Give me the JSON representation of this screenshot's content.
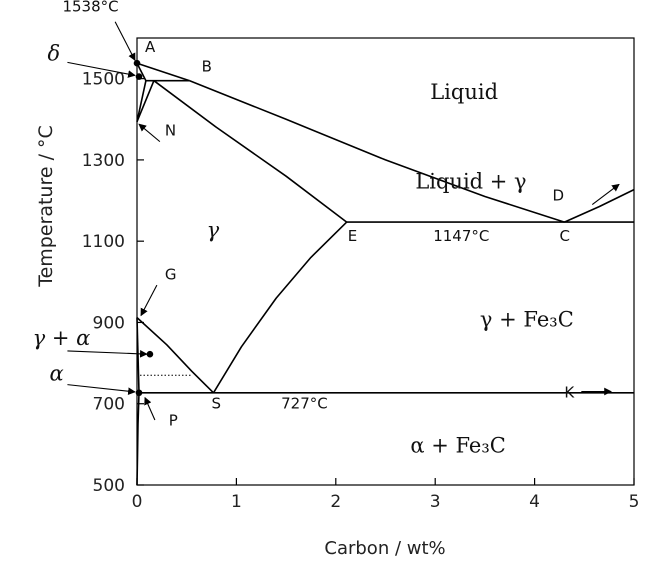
{
  "chart_data": {
    "type": "line",
    "title": "",
    "xlabel": "Carbon / wt%",
    "ylabel": "Temperature / °C",
    "xlim": [
      0,
      5
    ],
    "ylim": [
      500,
      1600
    ],
    "x_ticks": [
      "0",
      "1",
      "2",
      "3",
      "4",
      "5"
    ],
    "y_ticks": [
      "500",
      "700",
      "900",
      "1100",
      "1300",
      "1500"
    ],
    "x_tick_values": [
      0,
      1,
      2,
      3,
      4,
      5
    ],
    "y_tick_values": [
      500,
      700,
      900,
      1100,
      1300,
      1500
    ],
    "grid": false,
    "series": [
      {
        "id": "liquidus-AB",
        "points": [
          [
            0,
            1538
          ],
          [
            0.53,
            1495
          ]
        ]
      },
      {
        "id": "liquidus-BC",
        "points": [
          [
            0.53,
            1495
          ],
          [
            1.5,
            1400
          ],
          [
            2.5,
            1300
          ],
          [
            3.5,
            1210
          ],
          [
            4.3,
            1147
          ]
        ]
      },
      {
        "id": "solidus-E",
        "points": [
          [
            0.17,
            1495
          ],
          [
            0.8,
            1380
          ],
          [
            1.5,
            1260
          ],
          [
            2.11,
            1147
          ]
        ]
      },
      {
        "id": "line-CD",
        "points": [
          [
            4.3,
            1147
          ],
          [
            4.65,
            1185
          ],
          [
            5.0,
            1227
          ]
        ]
      },
      {
        "id": "eutectic-EC",
        "points": [
          [
            2.11,
            1147
          ],
          [
            5.0,
            1147
          ]
        ]
      },
      {
        "id": "peritectic",
        "points": [
          [
            0.09,
            1495
          ],
          [
            0.53,
            1495
          ]
        ]
      },
      {
        "id": "delta-solidus",
        "points": [
          [
            0,
            1538
          ],
          [
            0.09,
            1495
          ]
        ]
      },
      {
        "id": "delta-gamma-left",
        "points": [
          [
            0,
            1394
          ],
          [
            0.09,
            1495
          ]
        ]
      },
      {
        "id": "delta-gamma-right",
        "points": [
          [
            0,
            1394
          ],
          [
            0.17,
            1495
          ]
        ]
      },
      {
        "id": "acm-SE",
        "points": [
          [
            0.77,
            727
          ],
          [
            1.05,
            840
          ],
          [
            1.4,
            960
          ],
          [
            1.75,
            1060
          ],
          [
            2.11,
            1147
          ]
        ]
      },
      {
        "id": "a3-GS",
        "points": [
          [
            0,
            912
          ],
          [
            0.3,
            845
          ],
          [
            0.55,
            780
          ],
          [
            0.77,
            727
          ]
        ]
      },
      {
        "id": "a1-PK",
        "points": [
          [
            0.02,
            727
          ],
          [
            5.0,
            727
          ]
        ]
      },
      {
        "id": "alpha-boundary-GP",
        "points": [
          [
            0,
            912
          ],
          [
            0.02,
            727
          ]
        ]
      },
      {
        "id": "alpha-solvus",
        "points": [
          [
            0.02,
            727
          ],
          [
            0.01,
            650
          ],
          [
            0.005,
            570
          ],
          [
            0,
            500
          ]
        ]
      }
    ],
    "dotted_line": {
      "points": [
        [
          0.03,
          770
        ],
        [
          0.55,
          770
        ]
      ]
    },
    "marked_points": [
      {
        "name": "point-A",
        "x": 0.0,
        "y": 1538
      },
      {
        "name": "point-delta",
        "x": 0.02,
        "y": 1505
      },
      {
        "name": "point-alpha",
        "x": 0.02,
        "y": 727
      },
      {
        "name": "point-gamma-alpha",
        "x": 0.13,
        "y": 822
      }
    ],
    "point_labels": [
      {
        "name": "label-A",
        "text": "A",
        "x": 0.08,
        "y": 1565
      },
      {
        "name": "label-B",
        "text": "B",
        "x": 0.65,
        "y": 1518
      },
      {
        "name": "label-N",
        "text": "N",
        "x": 0.28,
        "y": 1360
      },
      {
        "name": "label-E",
        "text": "E",
        "x": 2.12,
        "y": 1100
      },
      {
        "name": "label-C",
        "text": "C",
        "x": 4.25,
        "y": 1100
      },
      {
        "name": "label-D",
        "text": "D",
        "x": 4.18,
        "y": 1200
      },
      {
        "name": "label-G",
        "text": "G",
        "x": 0.28,
        "y": 1006
      },
      {
        "name": "label-S",
        "text": "S",
        "x": 0.75,
        "y": 688
      },
      {
        "name": "label-P",
        "text": "P",
        "x": 0.32,
        "y": 646
      },
      {
        "name": "label-K",
        "text": "K",
        "x": 4.3,
        "y": 715
      }
    ],
    "temperature_labels": [
      {
        "name": "label-1147",
        "text": "1147°C",
        "x": 2.98,
        "y": 1100
      },
      {
        "name": "label-727",
        "text": "727°C",
        "x": 1.45,
        "y": 688
      },
      {
        "name": "label-1538",
        "text": "1538°C",
        "x": -0.75,
        "y": 1665
      }
    ],
    "phase_labels": [
      {
        "name": "phase-liquid",
        "text": "Liquid",
        "x": 2.95,
        "y": 1450
      },
      {
        "name": "phase-liquid-gamma",
        "text": "Liquid + γ",
        "x": 2.8,
        "y": 1230
      },
      {
        "name": "phase-gamma",
        "text": "γ",
        "x": 0.7,
        "y": 1110
      },
      {
        "name": "phase-gamma-fe3c",
        "text": "γ + Fe₃C",
        "x": 3.45,
        "y": 890
      },
      {
        "name": "phase-alpha-fe3c",
        "text": "α + Fe₃C",
        "x": 2.75,
        "y": 580
      }
    ],
    "side_labels": [
      {
        "name": "label-delta",
        "text": "δ",
        "x": -0.9,
        "y": 1545
      },
      {
        "name": "label-gamma-alpha",
        "text": "γ + α",
        "x": -1.05,
        "y": 845
      },
      {
        "name": "label-alpha",
        "text": "α",
        "x": -0.88,
        "y": 757
      }
    ],
    "arrows": [
      {
        "name": "arrow-1538",
        "from": [
          -0.22,
          1640
        ],
        "to": [
          -0.02,
          1545
        ]
      },
      {
        "name": "arrow-delta",
        "from": [
          -0.7,
          1540
        ],
        "to": [
          -0.02,
          1508
        ]
      },
      {
        "name": "arrow-gamma-alpha",
        "from": [
          -0.7,
          830
        ],
        "to": [
          0.1,
          822
        ]
      },
      {
        "name": "arrow-alpha",
        "from": [
          -0.7,
          747
        ],
        "to": [
          -0.02,
          729
        ]
      },
      {
        "name": "arrow-N",
        "from": [
          0.23,
          1345
        ],
        "to": [
          0.02,
          1388
        ]
      },
      {
        "name": "arrow-G",
        "from": [
          0.2,
          992
        ],
        "to": [
          0.04,
          917
        ]
      },
      {
        "name": "arrow-P",
        "from": [
          0.18,
          660
        ],
        "to": [
          0.08,
          715
        ]
      },
      {
        "name": "arrow-D",
        "from": [
          4.58,
          1190
        ],
        "to": [
          4.85,
          1240
        ]
      },
      {
        "name": "arrow-K",
        "from": [
          4.47,
          730
        ],
        "to": [
          4.77,
          730
        ]
      }
    ]
  }
}
